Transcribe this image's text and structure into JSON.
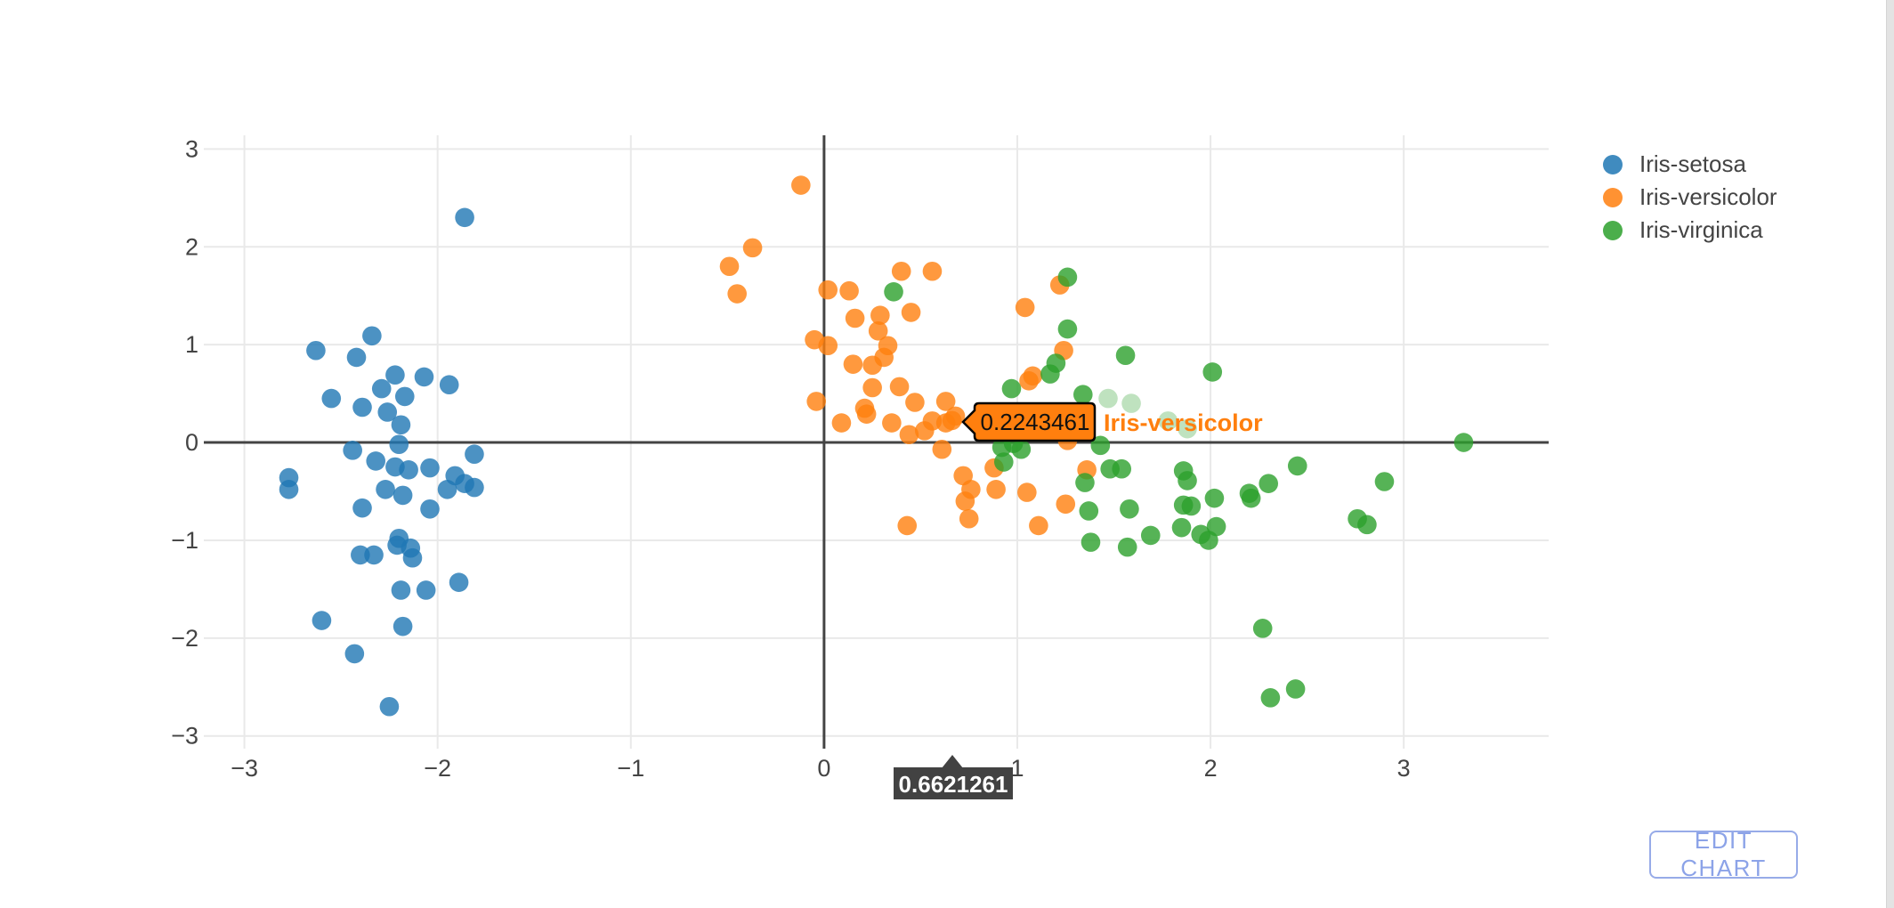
{
  "legend": {
    "items": [
      {
        "label": "Iris-setosa",
        "color": "#1f77b4"
      },
      {
        "label": "Iris-versicolor",
        "color": "#ff7f0e"
      },
      {
        "label": "Iris-virginica",
        "color": "#2ca02c"
      }
    ]
  },
  "edit_button": {
    "label": "EDIT CHART",
    "color": "#8ca3e8"
  },
  "tooltip": {
    "value": "0.2243461",
    "series": "Iris-versicolor",
    "bg": "#ff7f0e",
    "border": "#000000",
    "name_color": "#ff7f0e"
  },
  "x_tooltip": {
    "value": "0.6621261",
    "bg": "#424242",
    "text_color": "#ffffff"
  },
  "chart_data": {
    "type": "scatter",
    "title": "",
    "xlabel": "",
    "ylabel": "",
    "xlim": [
      -3.21,
      3.75
    ],
    "ylim": [
      -3.13,
      3.14
    ],
    "grid": true,
    "zerolines": true,
    "grid_color": "#e9e9e9",
    "zeroline_color": "#444444",
    "tick_color": "#444444",
    "marker_opacity": 0.8,
    "marker_radius_px": 10.8,
    "legend_position": "right",
    "x_ticks": {
      "values": [
        -3,
        -2,
        -1,
        0,
        1,
        2,
        3
      ],
      "labels": [
        "−3",
        "−2",
        "−1",
        "0",
        "1",
        "2",
        "3"
      ]
    },
    "y_ticks": {
      "values": [
        -3,
        -2,
        -1,
        0,
        1,
        2,
        3
      ],
      "labels": [
        "−3",
        "−2",
        "−1",
        "0",
        "1",
        "2",
        "3"
      ]
    },
    "hovered_point": {
      "series": "Iris-versicolor",
      "x": 0.6621261,
      "y": 0.2243461
    },
    "series": [
      {
        "name": "Iris-setosa",
        "color": "#1f77b4",
        "points": [
          [
            -1.86,
            2.3
          ],
          [
            -2.63,
            0.94
          ],
          [
            -2.34,
            1.09
          ],
          [
            -2.42,
            0.87
          ],
          [
            -2.22,
            0.69
          ],
          [
            -2.07,
            0.67
          ],
          [
            -1.94,
            0.59
          ],
          [
            -2.29,
            0.55
          ],
          [
            -2.17,
            0.47
          ],
          [
            -2.55,
            0.45
          ],
          [
            -2.39,
            0.36
          ],
          [
            -2.26,
            0.31
          ],
          [
            -2.19,
            0.18
          ],
          [
            -2.2,
            -0.02
          ],
          [
            -2.44,
            -0.08
          ],
          [
            -1.81,
            -0.12
          ],
          [
            -2.32,
            -0.19
          ],
          [
            -2.22,
            -0.25
          ],
          [
            -2.15,
            -0.28
          ],
          [
            -2.04,
            -0.26
          ],
          [
            -1.91,
            -0.34
          ],
          [
            -2.77,
            -0.36
          ],
          [
            -2.77,
            -0.48
          ],
          [
            -2.27,
            -0.48
          ],
          [
            -2.18,
            -0.54
          ],
          [
            -2.39,
            -0.67
          ],
          [
            -2.04,
            -0.68
          ],
          [
            -1.95,
            -0.48
          ],
          [
            -1.86,
            -0.42
          ],
          [
            -1.81,
            -0.46
          ],
          [
            -2.2,
            -0.98
          ],
          [
            -2.21,
            -1.05
          ],
          [
            -2.4,
            -1.15
          ],
          [
            -2.33,
            -1.15
          ],
          [
            -2.14,
            -1.08
          ],
          [
            -2.13,
            -1.18
          ],
          [
            -1.89,
            -1.43
          ],
          [
            -2.19,
            -1.51
          ],
          [
            -2.06,
            -1.51
          ],
          [
            -2.6,
            -1.82
          ],
          [
            -2.18,
            -1.88
          ],
          [
            -2.43,
            -2.16
          ],
          [
            -2.25,
            -2.7
          ]
        ]
      },
      {
        "name": "Iris-versicolor",
        "color": "#ff7f0e",
        "points": [
          [
            -0.12,
            2.63
          ],
          [
            -0.37,
            1.99
          ],
          [
            -0.49,
            1.8
          ],
          [
            -0.45,
            1.52
          ],
          [
            0.02,
            1.56
          ],
          [
            0.13,
            1.55
          ],
          [
            0.4,
            1.75
          ],
          [
            0.56,
            1.75
          ],
          [
            0.16,
            1.27
          ],
          [
            0.29,
            1.3
          ],
          [
            0.45,
            1.33
          ],
          [
            0.28,
            1.14
          ],
          [
            -0.05,
            1.05
          ],
          [
            0.02,
            0.99
          ],
          [
            0.33,
            0.99
          ],
          [
            0.15,
            0.8
          ],
          [
            0.25,
            0.79
          ],
          [
            0.31,
            0.87
          ],
          [
            0.39,
            0.57
          ],
          [
            0.25,
            0.56
          ],
          [
            -0.04,
            0.42
          ],
          [
            0.21,
            0.35
          ],
          [
            0.22,
            0.29
          ],
          [
            0.47,
            0.41
          ],
          [
            0.63,
            0.42
          ],
          [
            0.68,
            0.27
          ],
          [
            1.04,
            1.38
          ],
          [
            1.08,
            0.68
          ],
          [
            1.22,
            1.61
          ],
          [
            1.24,
            0.94
          ],
          [
            1.06,
            0.63
          ],
          [
            0.09,
            0.2
          ],
          [
            0.35,
            0.2
          ],
          [
            0.44,
            0.08
          ],
          [
            0.52,
            0.12
          ],
          [
            0.56,
            0.22
          ],
          [
            0.63,
            0.2
          ],
          [
            0.6621261,
            0.2243461
          ],
          [
            0.61,
            -0.07
          ],
          [
            0.72,
            -0.34
          ],
          [
            0.76,
            -0.48
          ],
          [
            0.73,
            -0.6
          ],
          [
            0.75,
            -0.78
          ],
          [
            0.43,
            -0.85
          ],
          [
            0.88,
            -0.26
          ],
          [
            0.89,
            -0.48
          ],
          [
            1.05,
            -0.51
          ],
          [
            1.11,
            -0.85
          ],
          [
            1.25,
            -0.63
          ],
          [
            1.36,
            -0.28
          ],
          [
            1.26,
            0.02
          ]
        ]
      },
      {
        "name": "Iris-virginica",
        "color": "#2ca02c",
        "points": [
          [
            0.36,
            1.54
          ],
          [
            1.26,
            1.69
          ],
          [
            1.26,
            1.16
          ],
          [
            1.2,
            0.81
          ],
          [
            1.17,
            0.7
          ],
          [
            0.97,
            0.55
          ],
          [
            1.34,
            0.49
          ],
          [
            1.56,
            0.89
          ],
          [
            2.01,
            0.72
          ],
          [
            0.92,
            -0.05
          ],
          [
            0.98,
            -0.01
          ],
          [
            1.02,
            -0.07
          ],
          [
            0.93,
            -0.2
          ],
          [
            1.43,
            -0.03
          ],
          [
            1.35,
            -0.41
          ],
          [
            1.37,
            -0.7
          ],
          [
            1.38,
            -1.02
          ],
          [
            1.48,
            -0.27
          ],
          [
            1.54,
            -0.27
          ],
          [
            1.58,
            -0.68
          ],
          [
            1.57,
            -1.07
          ],
          [
            1.69,
            -0.95
          ],
          [
            1.86,
            -0.29
          ],
          [
            1.88,
            -0.39
          ],
          [
            1.86,
            -0.64
          ],
          [
            1.9,
            -0.65
          ],
          [
            1.85,
            -0.87
          ],
          [
            1.95,
            -0.94
          ],
          [
            1.99,
            -1.0
          ],
          [
            2.03,
            -0.86
          ],
          [
            2.02,
            -0.57
          ],
          [
            2.2,
            -0.52
          ],
          [
            2.21,
            -0.57
          ],
          [
            2.3,
            -0.42
          ],
          [
            2.45,
            -0.24
          ],
          [
            2.76,
            -0.78
          ],
          [
            2.81,
            -0.84
          ],
          [
            2.9,
            -0.4
          ],
          [
            3.31,
            0.0
          ],
          [
            2.27,
            -1.9
          ],
          [
            2.31,
            -2.61
          ],
          [
            2.44,
            -2.52
          ]
        ],
        "faded_points": [
          [
            1.47,
            0.45
          ],
          [
            1.59,
            0.4
          ],
          [
            1.78,
            0.22
          ],
          [
            1.88,
            0.14
          ]
        ],
        "faded_opacity": 0.3
      }
    ]
  }
}
